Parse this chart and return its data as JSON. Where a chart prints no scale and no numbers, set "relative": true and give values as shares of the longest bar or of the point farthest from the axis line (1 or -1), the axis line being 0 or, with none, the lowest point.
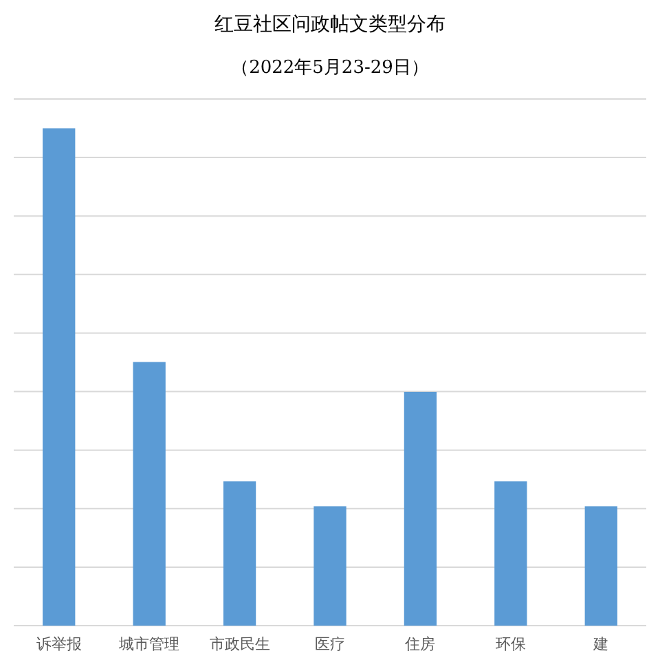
{
  "chart_data": {
    "type": "bar",
    "title": "红豆社区问政帖文类型分布",
    "subtitle": "（2022年5月23-29日）",
    "relative": true,
    "grid": "y",
    "categories": [
      "诉举报",
      "城市管理",
      "市政民生",
      "医疗",
      "住房",
      "环保",
      "建"
    ],
    "values": [
      1,
      0.53,
      0.29,
      0.24,
      0.47,
      0.29,
      0.24
    ],
    "color": "#5b9bd5"
  }
}
